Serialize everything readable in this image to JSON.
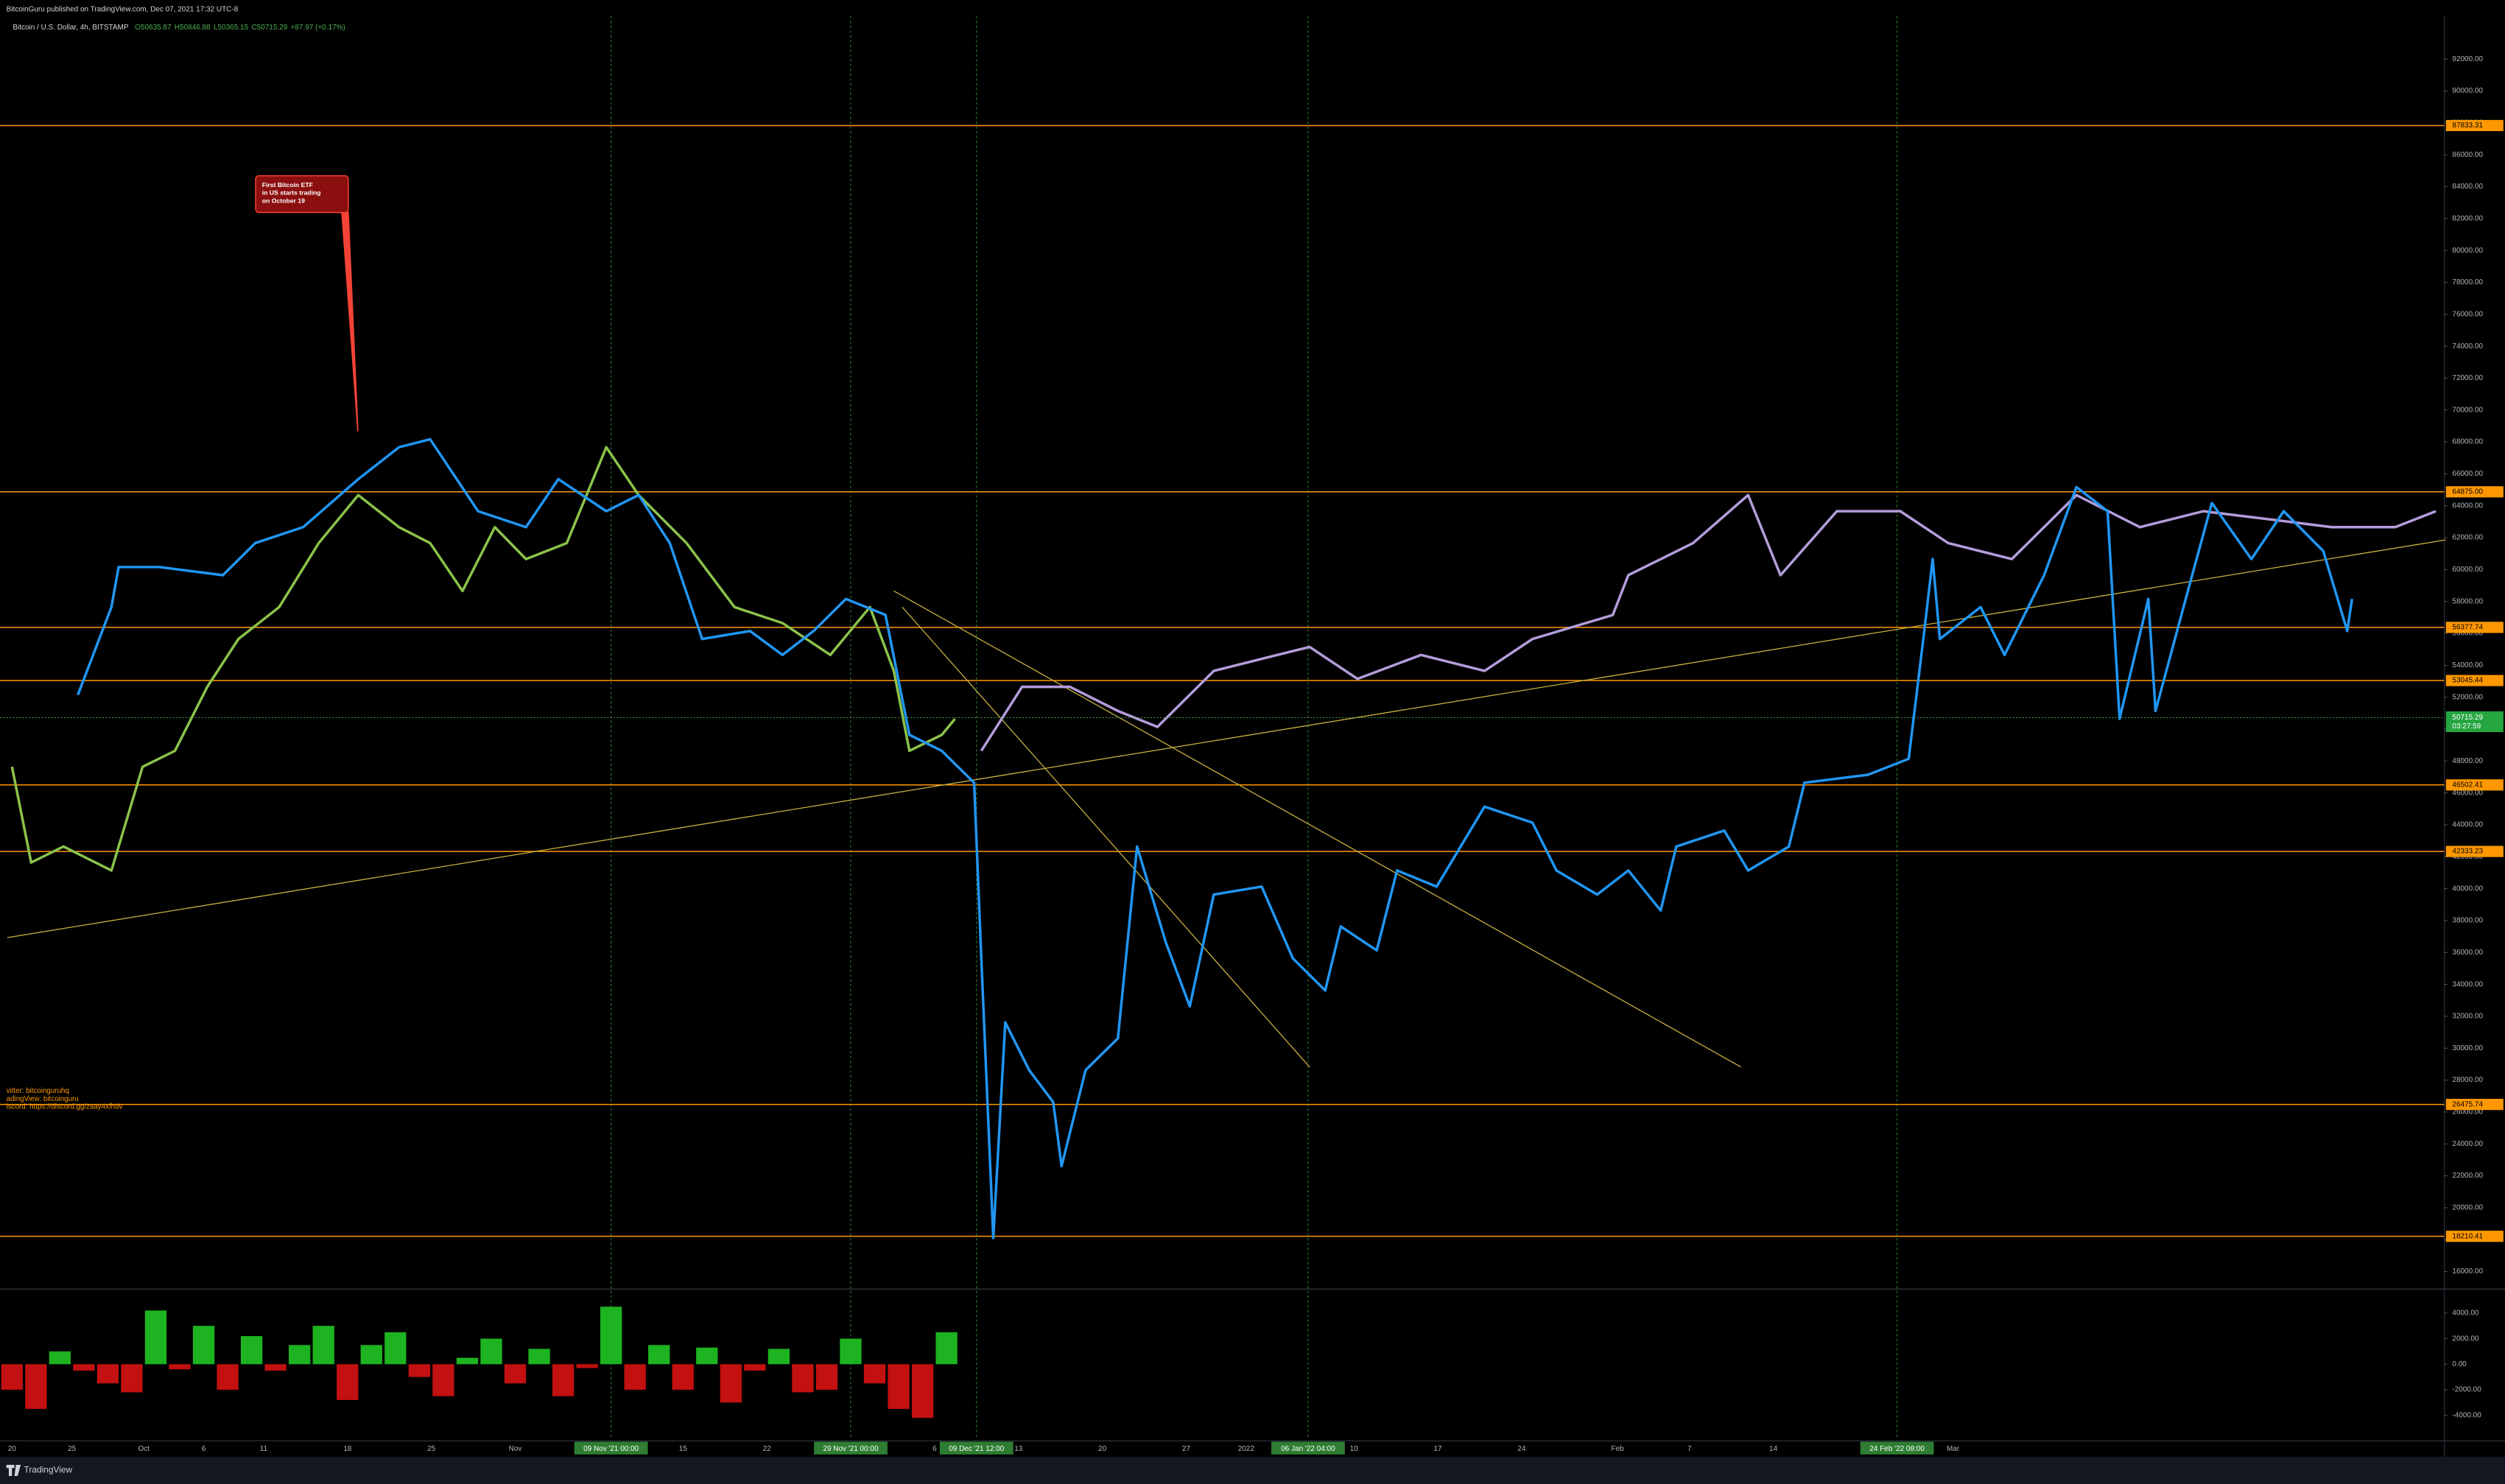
{
  "chart_data": {
    "type": "line",
    "publisher": "BitcoinGuru published on TradingView.com, Dec 07, 2021 17:32 UTC-8",
    "title": "Bitcoin / U.S. Dollar, 4h, BITSTAMP",
    "ohlc": [
      "O50635.87",
      "H50846.88",
      "L50365.15",
      "C50715.29",
      "+87.97 (+0.17%)"
    ],
    "xlim": [
      -1,
      203
    ],
    "ylim": [
      15000,
      94000
    ],
    "grid": false,
    "yticks": [
      {
        "value": 16000,
        "label": "16000.00"
      },
      {
        "value": 18000,
        "label": "18000.00"
      },
      {
        "value": 20000,
        "label": "20000.00"
      },
      {
        "value": 22000,
        "label": "22000.00"
      },
      {
        "value": 24000,
        "label": "24000.00"
      },
      {
        "value": 26000,
        "label": "26000.00"
      },
      {
        "value": 28000,
        "label": "28000.00"
      },
      {
        "value": 30000,
        "label": "30000.00"
      },
      {
        "value": 32000,
        "label": "32000.00"
      },
      {
        "value": 34000,
        "label": "34000.00"
      },
      {
        "value": 36000,
        "label": "36000.00"
      },
      {
        "value": 38000,
        "label": "38000.00"
      },
      {
        "value": 40000,
        "label": "40000.00"
      },
      {
        "value": 42000,
        "label": "42000.00"
      },
      {
        "value": 44000,
        "label": "44000.00"
      },
      {
        "value": 46000,
        "label": "46000.00"
      },
      {
        "value": 48000,
        "label": "48000.00"
      },
      {
        "value": 50000,
        "label": "50000.00"
      },
      {
        "value": 52000,
        "label": "52000.00"
      },
      {
        "value": 54000,
        "label": "54000.00"
      },
      {
        "value": 56000,
        "label": "56000.00"
      },
      {
        "value": 58000,
        "label": "58000.00"
      },
      {
        "value": 60000,
        "label": "60000.00"
      },
      {
        "value": 62000,
        "label": "62000.00"
      },
      {
        "value": 64000,
        "label": "64000.00"
      },
      {
        "value": 66000,
        "label": "66000.00"
      },
      {
        "value": 68000,
        "label": "68000.00"
      },
      {
        "value": 70000,
        "label": "70000.00"
      },
      {
        "value": 72000,
        "label": "72000.00"
      },
      {
        "value": 74000,
        "label": "74000.00"
      },
      {
        "value": 76000,
        "label": "76000.00"
      },
      {
        "value": 78000,
        "label": "78000.00"
      },
      {
        "value": 80000,
        "label": "80000.00"
      },
      {
        "value": 82000,
        "label": "82000.00"
      },
      {
        "value": 84000,
        "label": "84000.00"
      },
      {
        "value": 86000,
        "label": "86000.00"
      },
      {
        "value": 88000,
        "label": "88000.00"
      },
      {
        "value": 90000,
        "label": "90000.00"
      },
      {
        "value": 92000,
        "label": "92000.00"
      }
    ],
    "xticks": [
      {
        "value": 0,
        "label": "20"
      },
      {
        "value": 5,
        "label": "25"
      },
      {
        "value": 11,
        "label": "Oct"
      },
      {
        "value": 16,
        "label": "6"
      },
      {
        "value": 21,
        "label": "11"
      },
      {
        "value": 28,
        "label": "18"
      },
      {
        "value": 35,
        "label": "25"
      },
      {
        "value": 42,
        "label": "Nov"
      },
      {
        "value": 56,
        "label": "15"
      },
      {
        "value": 63,
        "label": "22"
      },
      {
        "value": 77,
        "label": "6"
      },
      {
        "value": 84,
        "label": "13"
      },
      {
        "value": 91,
        "label": "20"
      },
      {
        "value": 98,
        "label": "27"
      },
      {
        "value": 103,
        "label": "2022"
      },
      {
        "value": 112,
        "label": "10"
      },
      {
        "value": 119,
        "label": "17"
      },
      {
        "value": 126,
        "label": "24"
      },
      {
        "value": 134,
        "label": "Feb"
      },
      {
        "value": 140,
        "label": "7"
      },
      {
        "value": 147,
        "label": "14"
      },
      {
        "value": 162,
        "label": "Mar"
      }
    ],
    "x_markers": [
      {
        "value": 50,
        "label": "09 Nov '21  00:00"
      },
      {
        "value": 70,
        "label": "29 Nov '21  00:00"
      },
      {
        "value": 80.5,
        "label": "09 Dec '21  12:00"
      },
      {
        "value": 108.17,
        "label": "06 Jan '22  04:00"
      },
      {
        "value": 157.33,
        "label": "24 Feb '22  08:00"
      }
    ],
    "series": [
      {
        "color": "#8bc34a",
        "x": [
          0,
          1.6,
          4.3,
          8.3,
          10.9,
          13.6,
          16.3,
          18.9,
          22.3,
          25.6,
          28.9,
          32.3,
          34.9,
          37.6,
          40.3,
          42.9,
          46.3,
          49.6,
          52.3,
          56.3,
          60.3,
          64.3,
          68.3,
          71.6,
          73.6,
          74.9,
          77.6,
          78.7
        ],
        "values": [
          47640,
          41640,
          42640,
          41140,
          47640,
          48640,
          52650,
          55650,
          57650,
          61660,
          64670,
          62660,
          61660,
          58660,
          62660,
          60660,
          61660,
          67670,
          64670,
          61660,
          57650,
          56650,
          54650,
          57650,
          53650,
          48640,
          49640,
          50640
        ]
      },
      {
        "color": "#b39ddb",
        "x": [
          80.9,
          84.3,
          88.3,
          92.3,
          95.6,
          100.3,
          105.6,
          108.3,
          112.3,
          117.6,
          122.9,
          126.9,
          133.6,
          134.9,
          140.3,
          144.9,
          147.6,
          152.3,
          157.6,
          161.6,
          166.9,
          172.3,
          177.6,
          182.9,
          188.3,
          193.6,
          198.9,
          202.3
        ],
        "values": [
          48640,
          52650,
          52650,
          51140,
          50140,
          53650,
          54650,
          55150,
          53150,
          54650,
          53650,
          55650,
          57150,
          59650,
          61660,
          64670,
          59650,
          63660,
          63660,
          61660,
          60660,
          64670,
          62660,
          63660,
          63160,
          62660,
          62660,
          63660
        ]
      },
      {
        "color": "#2196f3",
        "x": [
          5.5,
          8.3,
          8.9,
          12.3,
          17.6,
          20.3,
          24.3,
          28.9,
          32.3,
          34.9,
          38.9,
          42.9,
          45.6,
          49.6,
          52.3,
          54.9,
          57.6,
          61.6,
          64.3,
          66.9,
          69.6,
          72.9,
          74.9,
          77.6,
          80.3,
          80.9,
          81.9,
          82.9,
          84.9,
          86.9,
          87.6,
          89.6,
          92.3,
          93.9,
          96.3,
          98.3,
          100.3,
          104.3,
          106.9,
          109.6,
          110.9,
          113.9,
          115.6,
          118.9,
          122.9,
          126.9,
          128.9,
          132.3,
          134.9,
          137.6,
          138.9,
          142.9,
          144.9,
          148.3,
          149.6,
          154.9,
          158.3,
          159.6,
          160.3,
          160.9,
          164.3,
          166.3,
          169.6,
          172.3,
          174.9,
          175.9,
          178.3,
          178.9,
          181.6,
          183.6,
          186.9,
          189.6,
          192.9,
          194.9,
          195.3
        ],
        "values": [
          52150,
          57650,
          60160,
          60160,
          59650,
          61660,
          62660,
          65670,
          67670,
          68170,
          63660,
          62660,
          65670,
          63660,
          64670,
          61660,
          55650,
          56150,
          54650,
          56150,
          58160,
          57160,
          49640,
          48640,
          46640,
          35630,
          18100,
          31620,
          28620,
          26620,
          22610,
          28620,
          30620,
          42640,
          36630,
          32620,
          39630,
          40130,
          35630,
          33620,
          37630,
          36130,
          41140,
          40130,
          45140,
          44140,
          41140,
          39630,
          41140,
          38630,
          42640,
          43640,
          41140,
          42640,
          46640,
          47140,
          48140,
          56150,
          60660,
          55650,
          57650,
          54650,
          59650,
          65170,
          63660,
          50640,
          58160,
          51140,
          58660,
          64170,
          60660,
          63660,
          61160,
          56150,
          58160
        ]
      }
    ],
    "trend_lines": [
      {
        "color": "#c8b040",
        "x": [
          -0.4,
          203.1
        ],
        "values": [
          36930,
          61860
        ]
      },
      {
        "color": "#c8b040",
        "x": [
          73.6,
          144.3
        ],
        "values": [
          58660,
          28820
        ]
      },
      {
        "color": "#c8b040",
        "x": [
          74.3,
          108.3
        ],
        "values": [
          57650,
          28820
        ]
      }
    ],
    "level_color": "#ff9800",
    "levels": [
      {
        "value": 87833.31,
        "label": "87833.31"
      },
      {
        "value": 64875.0,
        "label": "64875.00"
      },
      {
        "value": 56377.74,
        "label": "56377.74"
      },
      {
        "value": 53045.44,
        "label": "53045.44"
      },
      {
        "value": 46502.41,
        "label": "46502.41"
      },
      {
        "value": 42333.23,
        "label": "42333.23"
      },
      {
        "value": 26475.74,
        "label": "26475.74"
      },
      {
        "value": 18210.41,
        "label": "18210.41"
      }
    ],
    "current_price": {
      "value": 50715.29,
      "label": "50715.29",
      "countdown": "03:27:59"
    },
    "annotation": [
      "First Bitcoin ETF",
      "in US starts trading",
      "on October 19"
    ],
    "notes": [
      "vitter: bitcoinguruhq",
      "adingView: bitcoinguru",
      "iscord: https://discord.gg/zaay4xfhdv"
    ],
    "oscillator": {
      "ylim": [
        -5750,
        5750
      ],
      "yticks": [
        {
          "value": 4000,
          "label": "4000.00"
        },
        {
          "value": 2000,
          "label": "2000.00"
        },
        {
          "value": 0,
          "label": "0.00"
        },
        {
          "value": -2000,
          "label": "-2000.00"
        },
        {
          "value": -4000,
          "label": "-4000.00"
        }
      ],
      "x": [
        0,
        2,
        4,
        6,
        8,
        10,
        12,
        14,
        16,
        18,
        20,
        22,
        24,
        26,
        28,
        30,
        32,
        34,
        36,
        38,
        40,
        42,
        44,
        46,
        48,
        50,
        52,
        54,
        56,
        58,
        60,
        62,
        64,
        66,
        68,
        70,
        72,
        74,
        76,
        78
      ],
      "values": [
        -2000,
        -3500,
        1000,
        -500,
        -1500,
        -2200,
        4200,
        -400,
        3000,
        -2000,
        2200,
        -500,
        1500,
        3000,
        -2800,
        1500,
        2500,
        -1000,
        -2500,
        500,
        2000,
        -1500,
        1200,
        -2500,
        -300,
        4500,
        -2000,
        1500,
        -2000,
        1300,
        -3000,
        -500,
        1200,
        -2200,
        -2000,
        2000,
        -1500,
        -3500,
        -4200,
        2500
      ]
    },
    "brand": "TradingView"
  }
}
